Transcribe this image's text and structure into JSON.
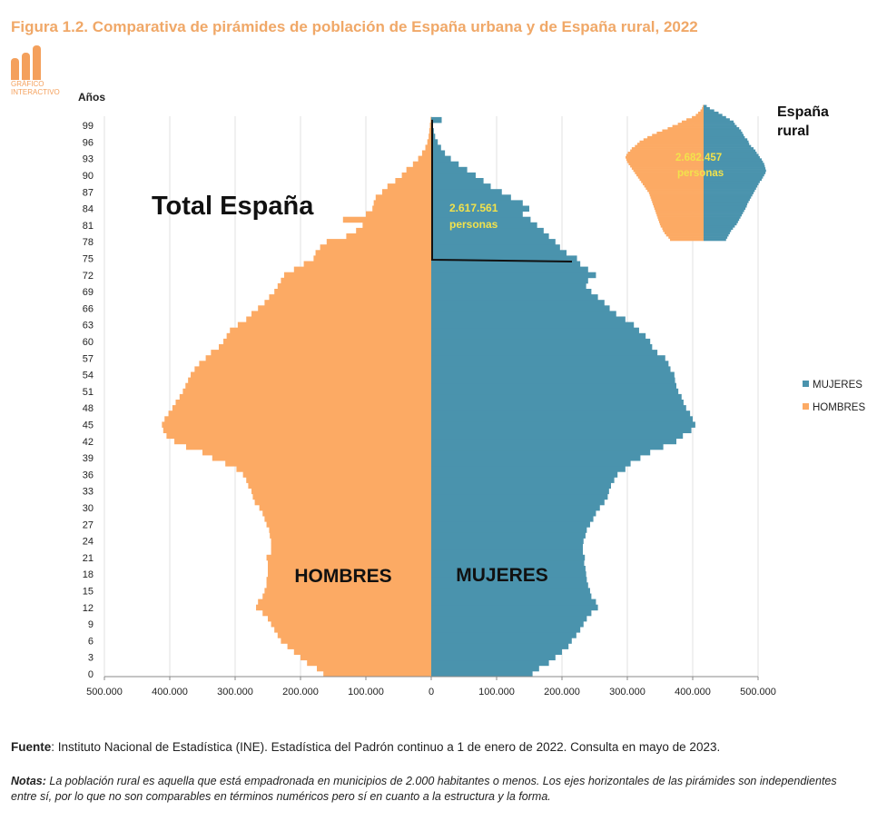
{
  "figure_title": "Figura 1.2. Comparativa de pirámides de población de España urbana y de España rural, 2022",
  "logo": {
    "text_line1": "GRÁFICO",
    "text_line2": "INTERACTIVO",
    "icon": "bar-chart-icon",
    "color": "#f4a05c"
  },
  "colors": {
    "mujeres": "#4a93ad",
    "hombres": "#fcaa64",
    "title": "#f0a868",
    "annotation": "#f2e24c"
  },
  "source": {
    "label": "Fuente",
    "text": ": Instituto Nacional de Estadística (INE). Estadística del Padrón continuo a 1 de enero de 2022. Consulta en mayo de 2023."
  },
  "notes": {
    "label": "Notas:",
    "text": " La población rural es aquella que está empadronada en municipios de 2.000 habitantes o menos. Los ejes horizontales de las pirámides son independientes entre sí, por lo que no son comparables en términos numéricos pero sí en cuanto a la estructura y la forma."
  },
  "chart_data": [
    {
      "type": "bar",
      "orientation": "horizontal-pyramid",
      "title": "Total España",
      "ylabel": "Años",
      "xlim": [
        -500000,
        500000
      ],
      "x_ticks": [
        "500.000",
        "400.000",
        "300.000",
        "200.000",
        "100.000",
        "0",
        "100.000",
        "200.000",
        "300.000",
        "400.000",
        "500.000"
      ],
      "y_ticks": [
        "0",
        "3",
        "6",
        "9",
        "12",
        "15",
        "18",
        "21",
        "24",
        "27",
        "30",
        "33",
        "36",
        "39",
        "42",
        "45",
        "48",
        "51",
        "54",
        "57",
        "60",
        "63",
        "66",
        "69",
        "72",
        "75",
        "78",
        "81",
        "84",
        "87",
        "90",
        "93",
        "96",
        "99"
      ],
      "side_labels": {
        "left": "HOMBRES",
        "right": "MUJERES"
      },
      "annotation": {
        "line1": "2.617.561",
        "line2": "personas"
      },
      "legend": {
        "position": "right",
        "entries": [
          "MUJERES",
          "HOMBRES"
        ]
      },
      "grid": true,
      "ages": [
        0,
        1,
        2,
        3,
        4,
        5,
        6,
        7,
        8,
        9,
        10,
        11,
        12,
        13,
        14,
        15,
        16,
        17,
        18,
        19,
        20,
        21,
        22,
        23,
        24,
        25,
        26,
        27,
        28,
        29,
        30,
        31,
        32,
        33,
        34,
        35,
        36,
        37,
        38,
        39,
        40,
        41,
        42,
        43,
        44,
        45,
        46,
        47,
        48,
        49,
        50,
        51,
        52,
        53,
        54,
        55,
        56,
        57,
        58,
        59,
        60,
        61,
        62,
        63,
        64,
        65,
        66,
        67,
        68,
        69,
        70,
        71,
        72,
        73,
        74,
        75,
        76,
        77,
        78,
        79,
        80,
        81,
        82,
        83,
        84,
        85,
        86,
        87,
        88,
        89,
        90,
        91,
        92,
        93,
        94,
        95,
        96,
        97,
        98,
        99,
        100
      ],
      "series": [
        {
          "name": "HOMBRES",
          "values": [
            165000,
            175000,
            190000,
            200000,
            210000,
            220000,
            230000,
            235000,
            240000,
            245000,
            250000,
            258000,
            268000,
            265000,
            258000,
            255000,
            252000,
            252000,
            250000,
            250000,
            250000,
            252000,
            245000,
            245000,
            245000,
            247000,
            248000,
            252000,
            255000,
            258000,
            263000,
            270000,
            273000,
            275000,
            280000,
            283000,
            288000,
            298000,
            315000,
            335000,
            350000,
            375000,
            393000,
            405000,
            410000,
            412000,
            408000,
            402000,
            396000,
            391000,
            385000,
            380000,
            376000,
            372000,
            368000,
            362000,
            355000,
            345000,
            337000,
            325000,
            318000,
            313000,
            308000,
            296000,
            283000,
            275000,
            265000,
            255000,
            248000,
            240000,
            235000,
            230000,
            225000,
            210000,
            195000,
            180000,
            177000,
            170000,
            160000,
            130000,
            115000,
            105000,
            135000,
            100000,
            90000,
            88000,
            85000,
            75000,
            67000,
            55000,
            45000,
            38000,
            28000,
            20000,
            14000,
            9000,
            6000,
            4000,
            3000,
            2000,
            1000
          ]
        },
        {
          "name": "MUJERES",
          "values": [
            155000,
            165000,
            180000,
            190000,
            200000,
            210000,
            215000,
            222000,
            228000,
            233000,
            238000,
            245000,
            255000,
            252000,
            245000,
            243000,
            240000,
            238000,
            237000,
            236000,
            234000,
            235000,
            232000,
            232000,
            233000,
            236000,
            238000,
            243000,
            248000,
            252000,
            258000,
            265000,
            270000,
            272000,
            275000,
            280000,
            285000,
            297000,
            305000,
            320000,
            335000,
            355000,
            375000,
            385000,
            398000,
            404000,
            400000,
            396000,
            390000,
            386000,
            383000,
            378000,
            375000,
            373000,
            372000,
            366000,
            363000,
            358000,
            346000,
            338000,
            335000,
            328000,
            318000,
            310000,
            297000,
            283000,
            273000,
            265000,
            255000,
            245000,
            237000,
            240000,
            252000,
            240000,
            228000,
            223000,
            207000,
            197000,
            190000,
            180000,
            172000,
            162000,
            152000,
            140000,
            150000,
            140000,
            122000,
            108000,
            91000,
            80000,
            68000,
            55000,
            42000,
            30000,
            21000,
            15000,
            10000,
            6000,
            4000,
            2000,
            16000
          ]
        }
      ]
    },
    {
      "type": "bar",
      "orientation": "horizontal-pyramid",
      "title": "España rural",
      "annotation": {
        "line1": "2.682.457",
        "line2": "personas"
      },
      "note": "Axis unlabeled; values shown relative to its own scale (max = 1.0)",
      "xlim": [
        -1,
        1
      ],
      "ages_from_bottom": [
        40,
        41,
        42,
        43,
        44,
        45,
        46,
        47,
        48,
        49,
        50,
        51,
        52,
        53,
        54,
        55,
        56,
        57,
        58,
        59,
        60,
        61,
        62,
        63,
        64,
        65,
        66,
        67,
        68,
        69,
        70,
        71,
        72,
        73,
        74,
        75,
        76,
        77,
        78,
        79,
        80,
        81,
        82,
        83,
        84,
        85,
        86,
        87,
        88,
        89,
        90,
        91,
        92,
        93,
        94,
        95,
        96,
        97,
        98,
        99,
        100
      ],
      "series": [
        {
          "name": "HOMBRES",
          "values": [
            0.43,
            0.45,
            0.48,
            0.5,
            0.52,
            0.53,
            0.55,
            0.56,
            0.57,
            0.58,
            0.59,
            0.6,
            0.61,
            0.62,
            0.63,
            0.64,
            0.65,
            0.66,
            0.67,
            0.68,
            0.69,
            0.7,
            0.72,
            0.74,
            0.76,
            0.78,
            0.8,
            0.82,
            0.84,
            0.86,
            0.88,
            0.9,
            0.92,
            0.94,
            0.96,
            0.98,
            0.99,
            1.0,
            0.99,
            0.97,
            0.94,
            0.92,
            0.88,
            0.85,
            0.82,
            0.77,
            0.72,
            0.66,
            0.6,
            0.53,
            0.46,
            0.4,
            0.33,
            0.28,
            0.22,
            0.15,
            0.1,
            0.07,
            0.04,
            0.02,
            0.01
          ]
        },
        {
          "name": "MUJERES",
          "values": [
            0.36,
            0.38,
            0.4,
            0.42,
            0.44,
            0.47,
            0.5,
            0.53,
            0.55,
            0.57,
            0.59,
            0.61,
            0.63,
            0.65,
            0.67,
            0.69,
            0.7,
            0.72,
            0.74,
            0.76,
            0.78,
            0.8,
            0.82,
            0.84,
            0.86,
            0.88,
            0.9,
            0.93,
            0.95,
            0.97,
            0.99,
            1.0,
            0.99,
            0.98,
            0.97,
            0.95,
            0.93,
            0.9,
            0.88,
            0.85,
            0.83,
            0.8,
            0.76,
            0.73,
            0.72,
            0.7,
            0.66,
            0.64,
            0.62,
            0.6,
            0.57,
            0.53,
            0.5,
            0.48,
            0.42,
            0.36,
            0.3,
            0.24,
            0.17,
            0.1,
            0.05
          ]
        }
      ]
    }
  ]
}
